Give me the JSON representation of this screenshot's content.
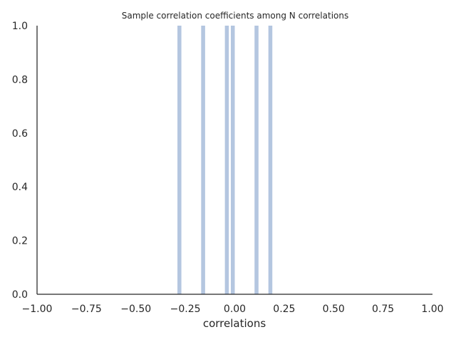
{
  "chart_data": {
    "type": "bar",
    "title": "Sample correlation coefficients among N correlations",
    "xlabel": "correlations",
    "ylabel": "",
    "xlim": [
      -1.0,
      1.0
    ],
    "ylim": [
      0.0,
      1.0
    ],
    "bar_width": 0.02,
    "bar_color": "#b4c6e0",
    "x_ticks": [
      "−1.00",
      "−0.75",
      "−0.50",
      "−0.25",
      "0.00",
      "0.25",
      "0.50",
      "0.75",
      "1.00"
    ],
    "x_tick_values": [
      -1.0,
      -0.75,
      -0.5,
      -0.25,
      0.0,
      0.25,
      0.5,
      0.75,
      1.0
    ],
    "y_ticks": [
      "0.0",
      "0.2",
      "0.4",
      "0.6",
      "0.8",
      "1.0"
    ],
    "y_tick_values": [
      0.0,
      0.2,
      0.4,
      0.6,
      0.8,
      1.0
    ],
    "x": [
      -0.28,
      -0.16,
      -0.04,
      -0.01,
      0.11,
      0.18
    ],
    "values": [
      1,
      1,
      1,
      1,
      1,
      1
    ],
    "grid": false,
    "legend": "none"
  }
}
